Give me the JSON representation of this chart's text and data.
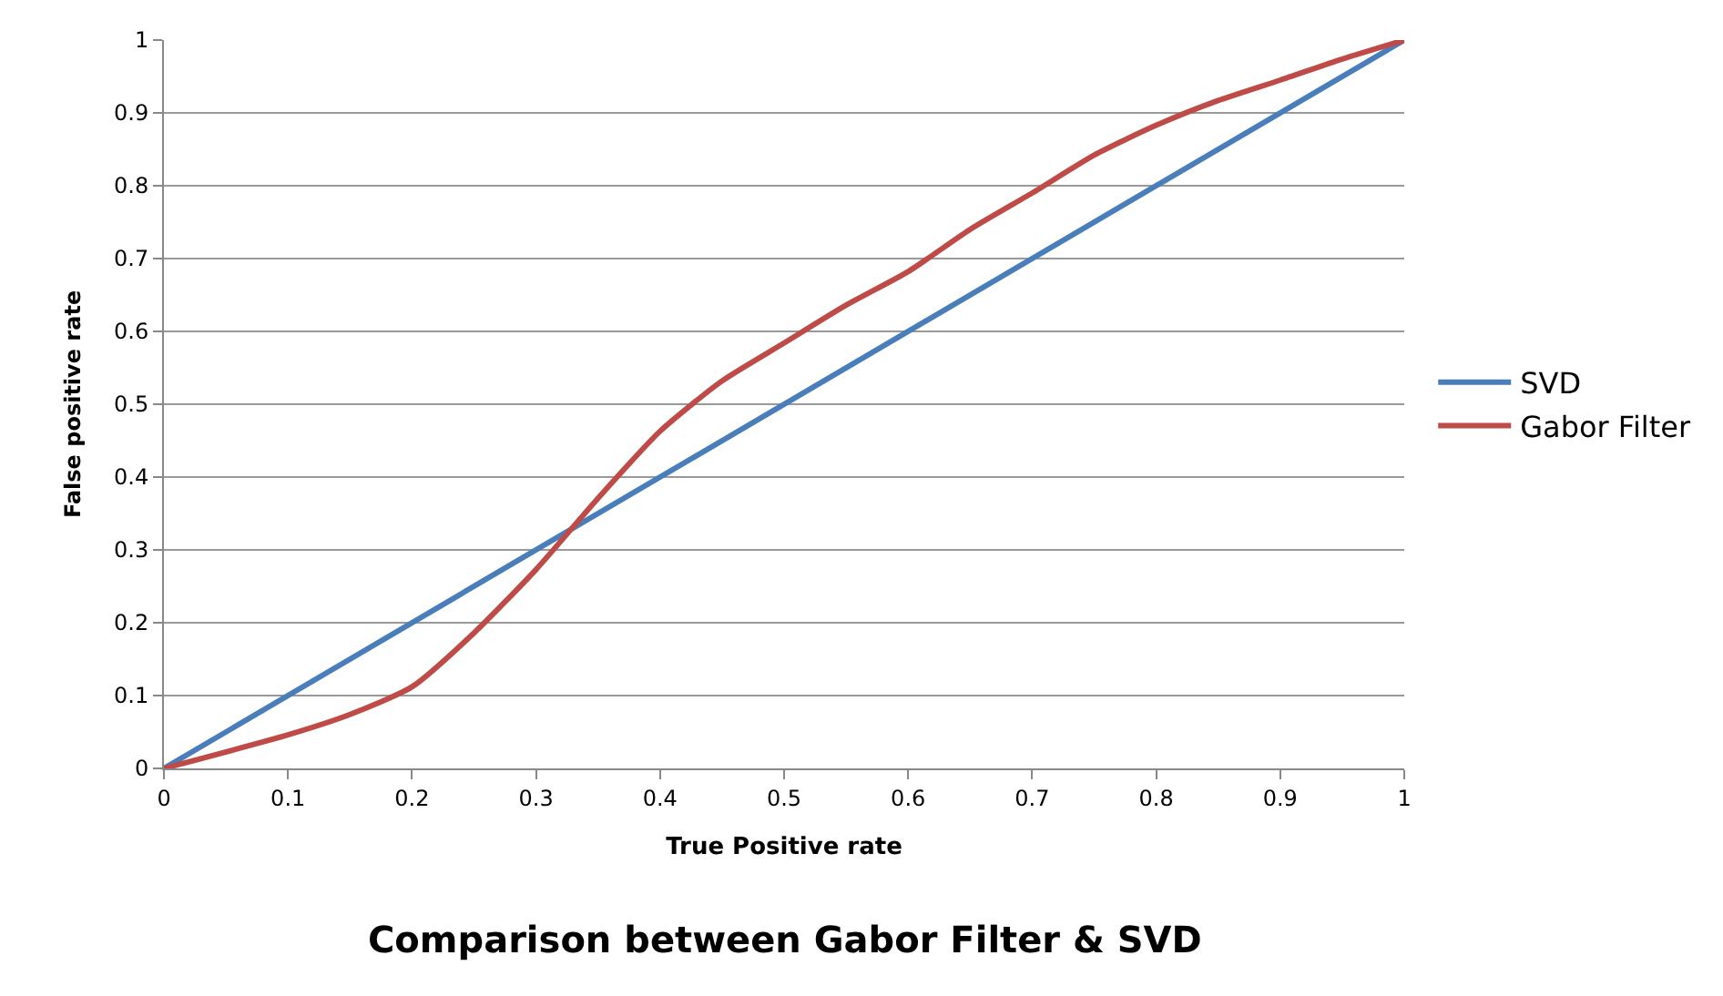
{
  "chart_data": {
    "type": "line",
    "title": "Comparison between Gabor Filter & SVD",
    "xlabel": "True Positive rate",
    "ylabel": "False positive rate",
    "xlim": [
      0,
      1
    ],
    "xticks": [
      0,
      0.1,
      0.2,
      0.3,
      0.4,
      0.5,
      0.6,
      0.7,
      0.8,
      0.9,
      1
    ],
    "ylim": [
      0,
      1
    ],
    "yticks": [
      0,
      0.1,
      0.2,
      0.3,
      0.4,
      0.5,
      0.6,
      0.7,
      0.8,
      0.9,
      1
    ],
    "grid": "y",
    "legend": "right",
    "marker": "none",
    "line_style": "solid",
    "series": [
      {
        "name": "SVD",
        "color": "#4a7ebb",
        "x": [
          0,
          1
        ],
        "values": [
          0,
          1
        ]
      },
      {
        "name": "Gabor Filter",
        "color": "#be4b48",
        "x": [
          0,
          0.1,
          0.15,
          0.2,
          0.25,
          0.3,
          0.35,
          0.4,
          0.45,
          0.5,
          0.55,
          0.6,
          0.65,
          0.7,
          0.75,
          0.8,
          0.85,
          0.9,
          0.95,
          1
        ],
        "values": [
          0,
          0.046,
          0.074,
          0.112,
          0.186,
          0.273,
          0.371,
          0.463,
          0.532,
          0.584,
          0.636,
          0.682,
          0.74,
          0.79,
          0.842,
          0.883,
          0.917,
          0.945,
          0.974,
          1
        ]
      }
    ]
  }
}
